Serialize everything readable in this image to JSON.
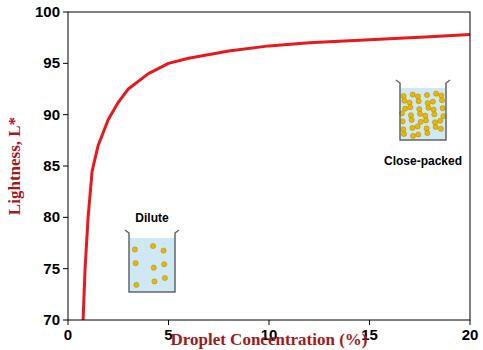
{
  "chart_data": {
    "type": "line",
    "x_label": "Droplet Concentration (%)",
    "y_label": "Lightness, L*",
    "x": [
      0.75,
      0.85,
      1,
      1.2,
      1.5,
      2,
      2.5,
      3,
      4,
      5,
      6,
      8,
      10,
      12,
      15,
      18,
      20
    ],
    "values": [
      70,
      75,
      80,
      84.5,
      87,
      89.5,
      91.2,
      92.5,
      94,
      95,
      95.5,
      96.2,
      96.7,
      97,
      97.3,
      97.6,
      97.8
    ],
    "color": "#e8191d",
    "xlim": [
      0,
      20
    ],
    "xticks": [
      0,
      5,
      10,
      15,
      20
    ],
    "ylim": [
      70,
      100
    ],
    "yticks": [
      70,
      75,
      80,
      85,
      90,
      95,
      100
    ],
    "grid": false,
    "annotations": [
      "Dilute",
      "Close-packed"
    ]
  }
}
